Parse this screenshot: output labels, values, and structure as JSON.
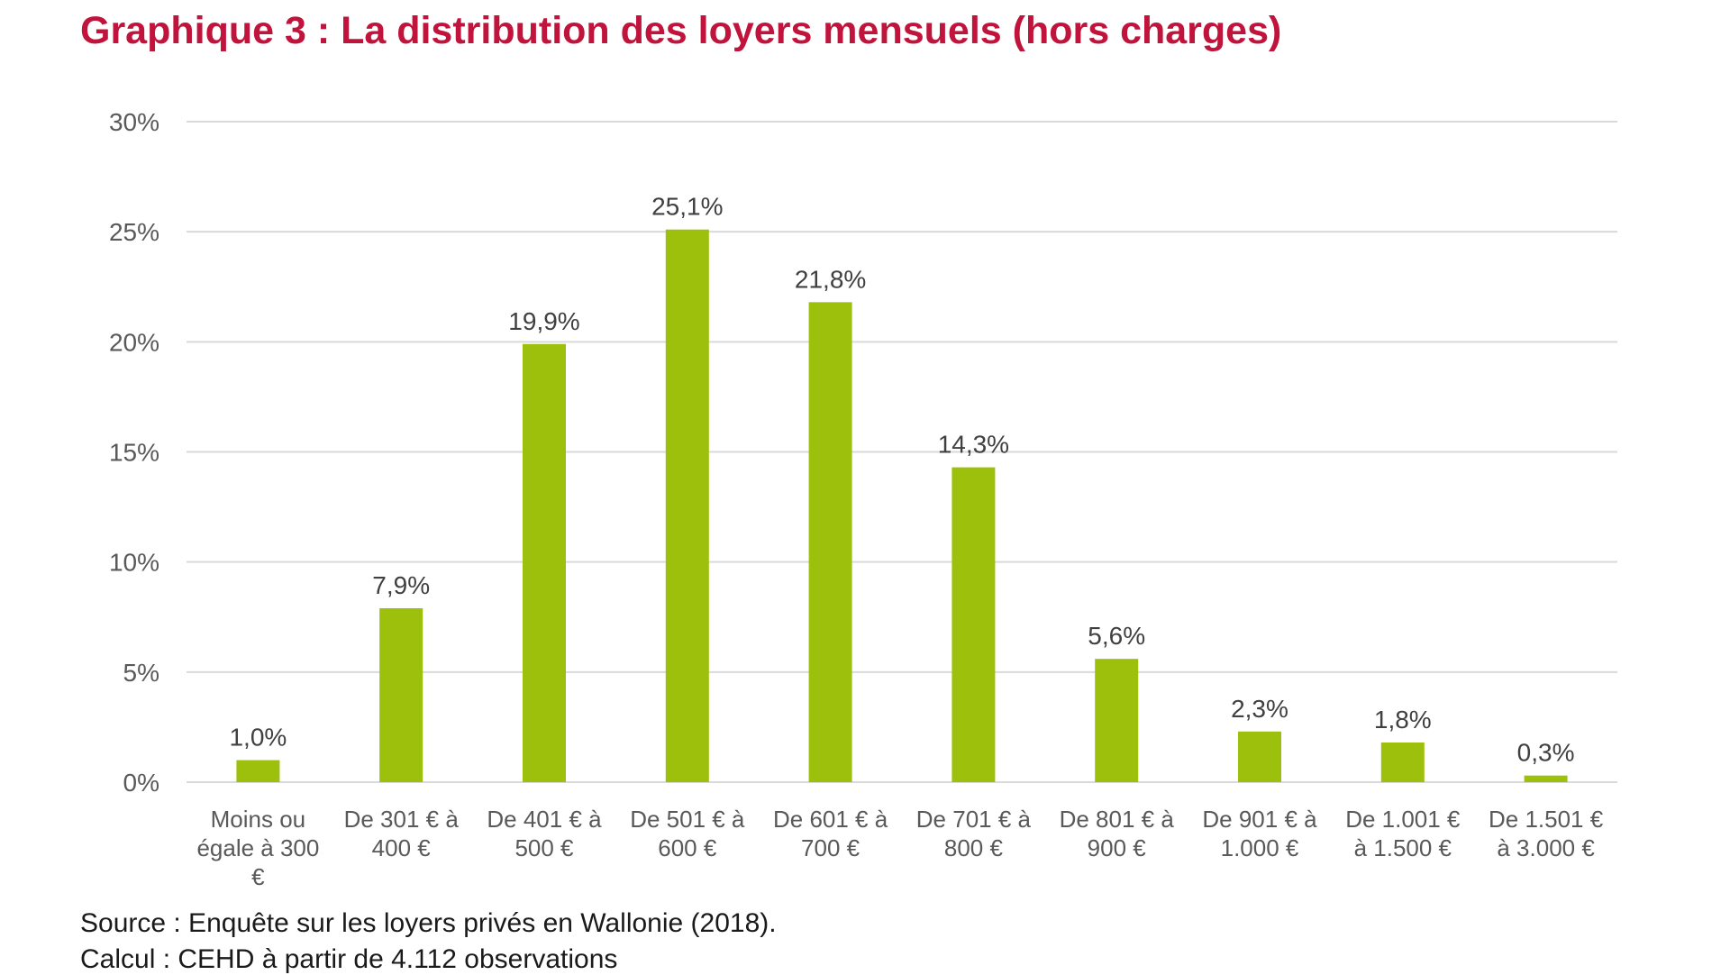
{
  "chart_data": {
    "type": "bar",
    "title": "Graphique 3 : La distribution des loyers mensuels (hors charges)",
    "categories": [
      "Moins ou égale à 300 €",
      "De 301 € à 400 €",
      "De 401 € à 500 €",
      "De 501 € à 600 €",
      "De 601 € à 700 €",
      "De 701 € à 800 €",
      "De 801 € à 900 €",
      "De 901 € à 1.000 €",
      "De 1.001 € à 1.500 €",
      "De 1.501 € à 3.000 €"
    ],
    "category_lines": [
      [
        "Moins ou",
        "égale à 300",
        "€"
      ],
      [
        "De 301 € à",
        "400 €"
      ],
      [
        "De 401 € à",
        "500 €"
      ],
      [
        "De 501 € à",
        "600 €"
      ],
      [
        "De 601 € à",
        "700 €"
      ],
      [
        "De 701 € à",
        "800 €"
      ],
      [
        "De 801 € à",
        "900 €"
      ],
      [
        "De 901 € à",
        "1.000 €"
      ],
      [
        "De 1.001 €",
        "à 1.500 €"
      ],
      [
        "De 1.501 €",
        "à 3.000 €"
      ]
    ],
    "values": [
      1.0,
      7.9,
      19.9,
      25.1,
      21.8,
      14.3,
      5.6,
      2.3,
      1.8,
      0.3
    ],
    "data_labels": [
      "1,0%",
      "7,9%",
      "19,9%",
      "25,1%",
      "21,8%",
      "14,3%",
      "5,6%",
      "2,3%",
      "1,8%",
      "0,3%"
    ],
    "ylim": [
      0,
      30
    ],
    "yticks": [
      0,
      5,
      10,
      15,
      20,
      25,
      30
    ],
    "ytick_labels": [
      "0%",
      "5%",
      "10%",
      "15%",
      "20%",
      "25%",
      "30%"
    ],
    "xlabel": "",
    "ylabel": "",
    "grid": true,
    "legend": "none",
    "bar_color": "#9dc00c",
    "grid_color": "#d9d9d9"
  },
  "title_color": "#c0143c",
  "footnotes": {
    "source": "Source : Enquête sur les loyers privés en Wallonie (2018).",
    "calcul": "Calcul : CEHD à partir de 4.112 observations"
  }
}
